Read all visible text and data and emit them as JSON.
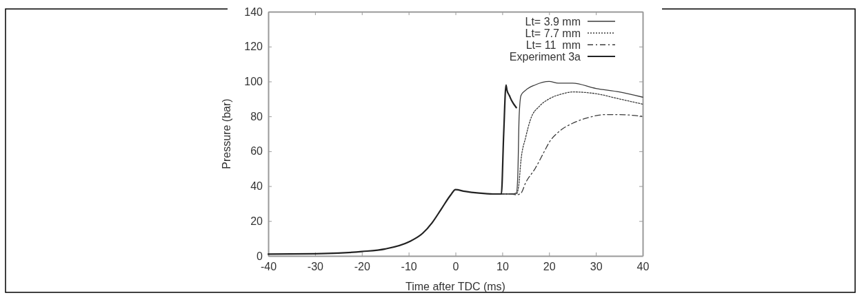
{
  "chart_data": {
    "type": "line",
    "xlabel": "Time after TDC (ms)",
    "ylabel": "Pressure (bar)",
    "xlim": [
      -40,
      40
    ],
    "xticks": [
      -40,
      -30,
      -20,
      -10,
      0,
      10,
      20,
      30,
      40
    ],
    "ylim": [
      0,
      140
    ],
    "yticks": [
      0,
      20,
      40,
      60,
      80,
      100,
      120,
      140
    ],
    "grid": false,
    "legend": "top right",
    "marker": "none",
    "series": [
      {
        "name": "Lt= 3.9 mm",
        "color": "#3a3a3a",
        "line_style": "solid",
        "x": [
          9,
          10,
          11,
          12,
          13,
          13.3,
          13.6,
          14,
          15,
          17,
          20,
          22,
          25,
          30,
          35,
          40
        ],
        "values": [
          35.5,
          35.5,
          35.5,
          35.5,
          36,
          45,
          80,
          92,
          95,
          98,
          100,
          99,
          99,
          96,
          94,
          91
        ]
      },
      {
        "name": "Lt= 7.7 mm",
        "color": "#3a3a3a",
        "line_style": "dotted",
        "x": [
          9,
          10,
          11,
          12,
          13,
          13.5,
          14,
          15,
          16,
          18,
          20,
          23,
          25,
          30,
          35,
          40
        ],
        "values": [
          35.5,
          35.5,
          35.5,
          35.5,
          35.5,
          40,
          55,
          68,
          78,
          86,
          90,
          93,
          94,
          93,
          90,
          87
        ]
      },
      {
        "name": "Lt= 11  mm",
        "color": "#3a3a3a",
        "line_style": "dashdot",
        "x": [
          9,
          10,
          11,
          12,
          13,
          14,
          15,
          17,
          19,
          20,
          22,
          25,
          28,
          32,
          35,
          40
        ],
        "values": [
          35.5,
          35.5,
          35.5,
          35.5,
          35,
          36,
          42,
          50,
          60,
          65,
          71,
          76,
          79,
          81,
          81,
          80
        ]
      },
      {
        "name": "Experiment 3a",
        "color": "#222222",
        "line_style": "solid",
        "x": [
          -40,
          -30,
          -25,
          -20,
          -15,
          -10,
          -7,
          -5,
          -3,
          -1,
          0,
          2,
          5,
          8,
          9.8,
          10.3,
          10.8,
          11,
          11.5,
          12,
          13
        ],
        "values": [
          1,
          1.2,
          1.6,
          2.5,
          4,
          8,
          13,
          19,
          27,
          35,
          38,
          37,
          36,
          35.5,
          35.5,
          70,
          98,
          95,
          92,
          89,
          85
        ]
      }
    ]
  }
}
